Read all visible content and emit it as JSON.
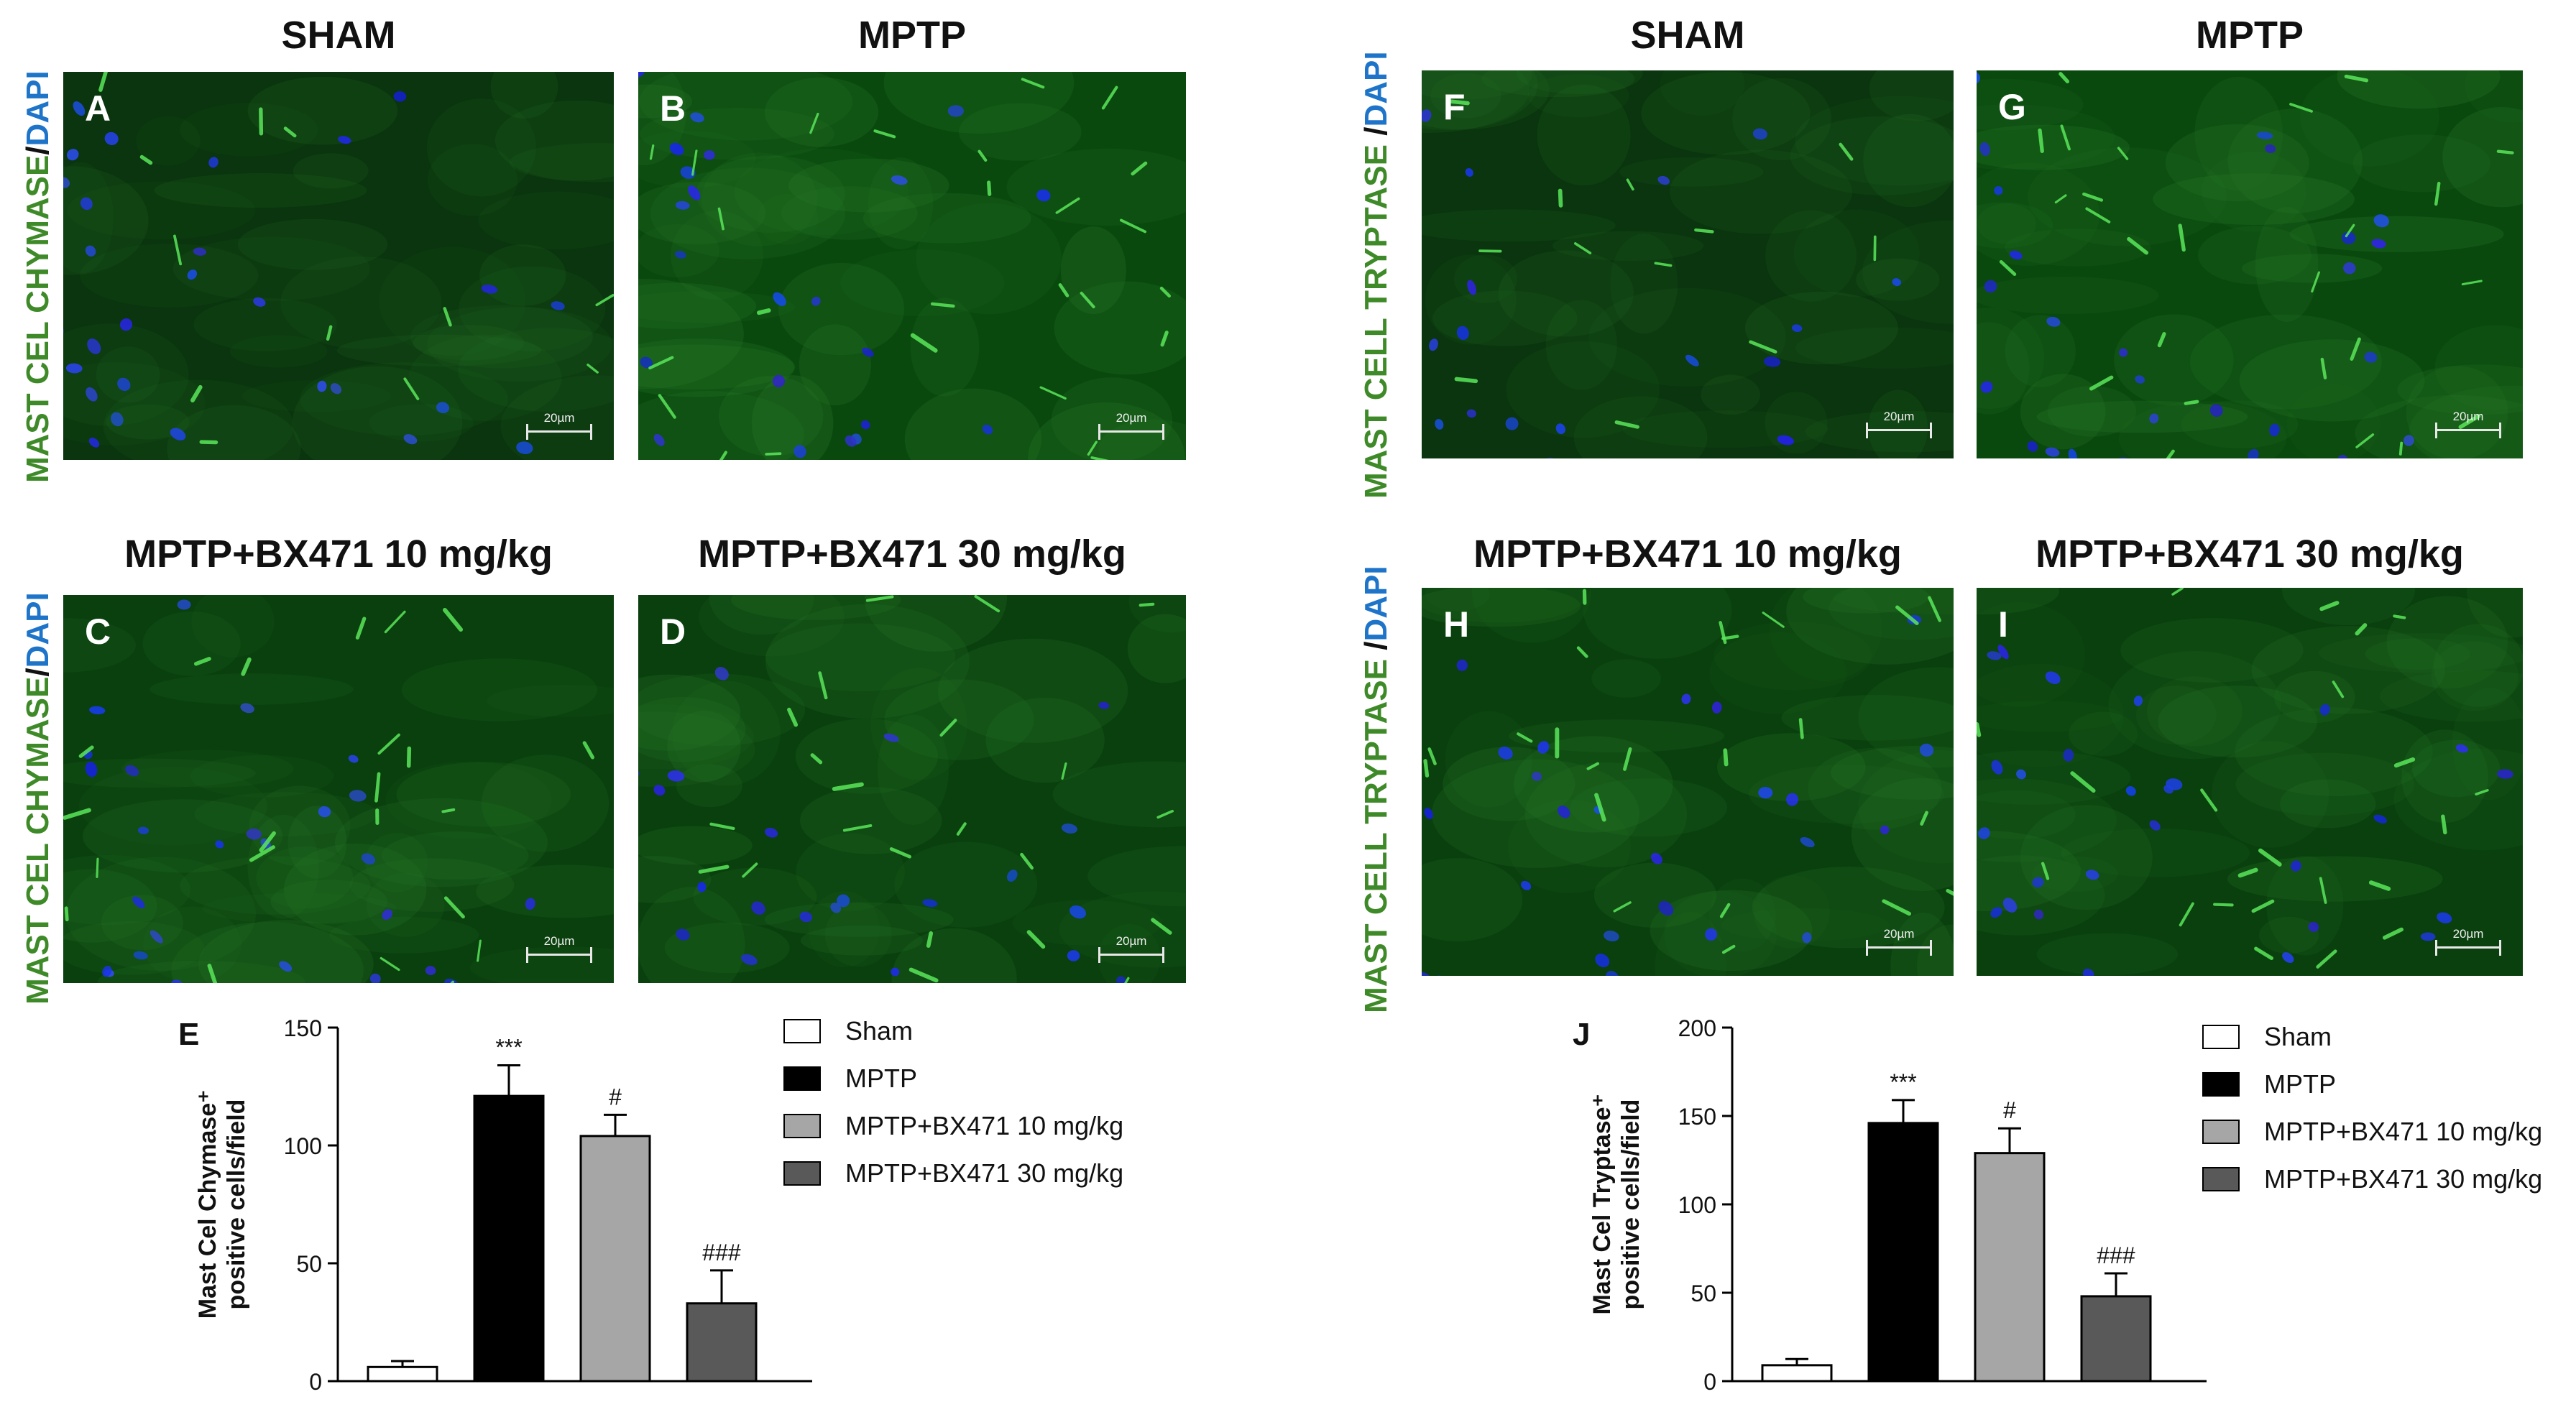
{
  "figure": {
    "left": {
      "titles": {
        "sham": "SHAM",
        "mptp": "MPTP",
        "bx10": "MPTP+BX471 10 mg/kg",
        "bx30": "MPTP+BX471 30 mg/kg"
      },
      "stain_label": {
        "marker": "MAST CEL CHYMASE",
        "sep": "/",
        "dapi": "DAPI"
      },
      "panels": {
        "A": "A",
        "B": "B",
        "C": "C",
        "D": "D"
      },
      "scale": "20µm",
      "graph_letter": "E"
    },
    "right": {
      "titles": {
        "sham": "SHAM",
        "mptp": "MPTP",
        "bx10": "MPTP+BX471 10 mg/kg",
        "bx30": "MPTP+BX471 30 mg/kg"
      },
      "stain_label_top": {
        "marker": "MAST CELL TRYPTASE ",
        "sep": "/",
        "dapi": "DAPI"
      },
      "stain_label_bottom": {
        "marker": "MAST CELL TRYPTASE ",
        "sep": "/",
        "dapi": "DAPI"
      },
      "panels": {
        "F": "F",
        "G": "G",
        "H": "H",
        "I": "I"
      },
      "scale": "20µm",
      "graph_letter": "J"
    }
  },
  "legend": {
    "items": [
      {
        "label": "Sham",
        "color": "#ffffff"
      },
      {
        "label": "MPTP",
        "color": "#000000"
      },
      {
        "label": "MPTP+BX471 10 mg/kg",
        "color": "#a6a6a6"
      },
      {
        "label": "MPTP+BX471 30 mg/kg",
        "color": "#595959"
      }
    ]
  },
  "chart_data": [
    {
      "type": "bar",
      "panel": "E",
      "categories": [
        "Sham",
        "MPTP",
        "MPTP+BX471 10 mg/kg",
        "MPTP+BX471 30 mg/kg"
      ],
      "values": [
        6,
        121,
        104,
        33
      ],
      "errors": [
        2.5,
        13,
        9,
        14
      ],
      "annotations": [
        "",
        "***",
        "#",
        "###"
      ],
      "colors": [
        "#ffffff",
        "#000000",
        "#a6a6a6",
        "#595959"
      ],
      "ylabel_line1": "Mast Cel Chymase⁺",
      "ylabel_line2": "positive cells/field",
      "ylim": [
        0,
        150
      ],
      "yticks": [
        0,
        50,
        100,
        150
      ]
    },
    {
      "type": "bar",
      "panel": "J",
      "categories": [
        "Sham",
        "MPTP",
        "MPTP+BX471 10 mg/kg",
        "MPTP+BX471 30 mg/kg"
      ],
      "values": [
        9,
        146,
        129,
        48
      ],
      "errors": [
        3.5,
        13,
        14,
        13
      ],
      "annotations": [
        "",
        "***",
        "#",
        "###"
      ],
      "colors": [
        "#ffffff",
        "#000000",
        "#a6a6a6",
        "#595959"
      ],
      "ylabel_line1": "Mast Cel Tryptase⁺",
      "ylabel_line2": "positive cells/field",
      "ylim": [
        0,
        200
      ],
      "yticks": [
        0,
        50,
        100,
        150,
        200
      ]
    }
  ]
}
